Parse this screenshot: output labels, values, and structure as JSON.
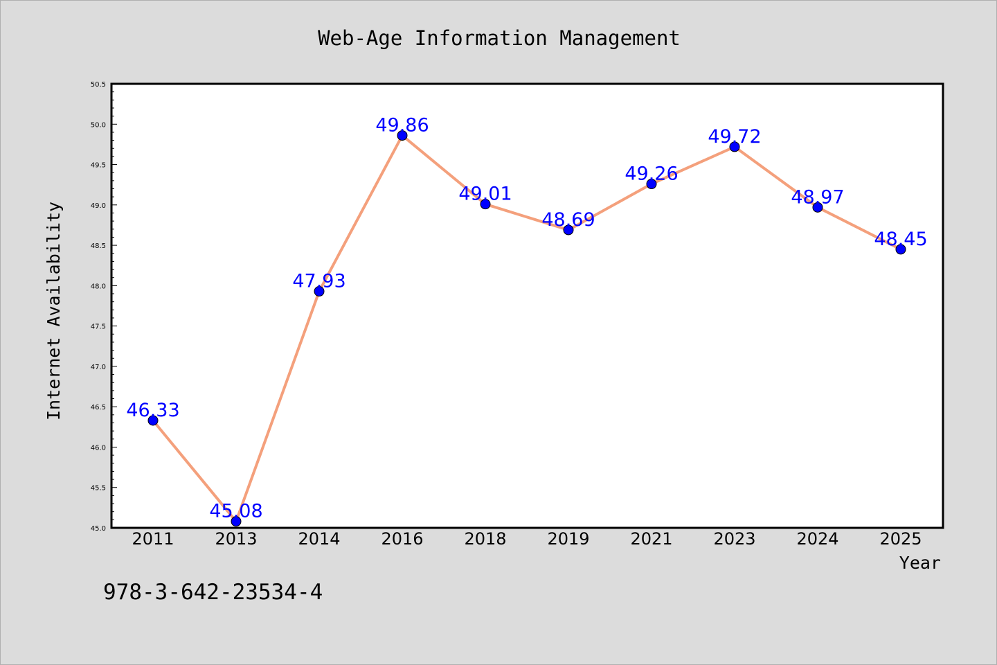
{
  "chart_data": {
    "type": "line",
    "title": "Web-Age Information Management",
    "xlabel": "Year",
    "ylabel": "Internet Availability",
    "categories": [
      "2011",
      "2013",
      "2014",
      "2016",
      "2018",
      "2019",
      "2021",
      "2023",
      "2024",
      "2025"
    ],
    "series": [
      {
        "values": [
          46.33,
          45.08,
          47.93,
          49.86,
          49.01,
          48.69,
          49.26,
          49.72,
          48.97,
          48.45
        ],
        "line_color": "#f4a07c",
        "marker_color": "#0000ff"
      }
    ],
    "data_labels": [
      "46.33",
      "45.08",
      "47.93",
      "49.86",
      "49.01",
      "48.69",
      "49.26",
      "49.72",
      "48.97",
      "48.45"
    ],
    "ylim": [
      45.0,
      50.5
    ],
    "yticks": [
      "45.0",
      "45.5",
      "46.0",
      "46.5",
      "47.0",
      "47.5",
      "48.0",
      "48.5",
      "49.0",
      "49.5",
      "50.0",
      "50.5"
    ],
    "grid": false,
    "legend": "none"
  },
  "footnote": "978-3-642-23534-4",
  "colors": {
    "background": "#dcdcdc",
    "plot_background": "#ffffff",
    "line": "#f4a07c",
    "marker": "#0000ff",
    "data_label": "#0000ff"
  }
}
